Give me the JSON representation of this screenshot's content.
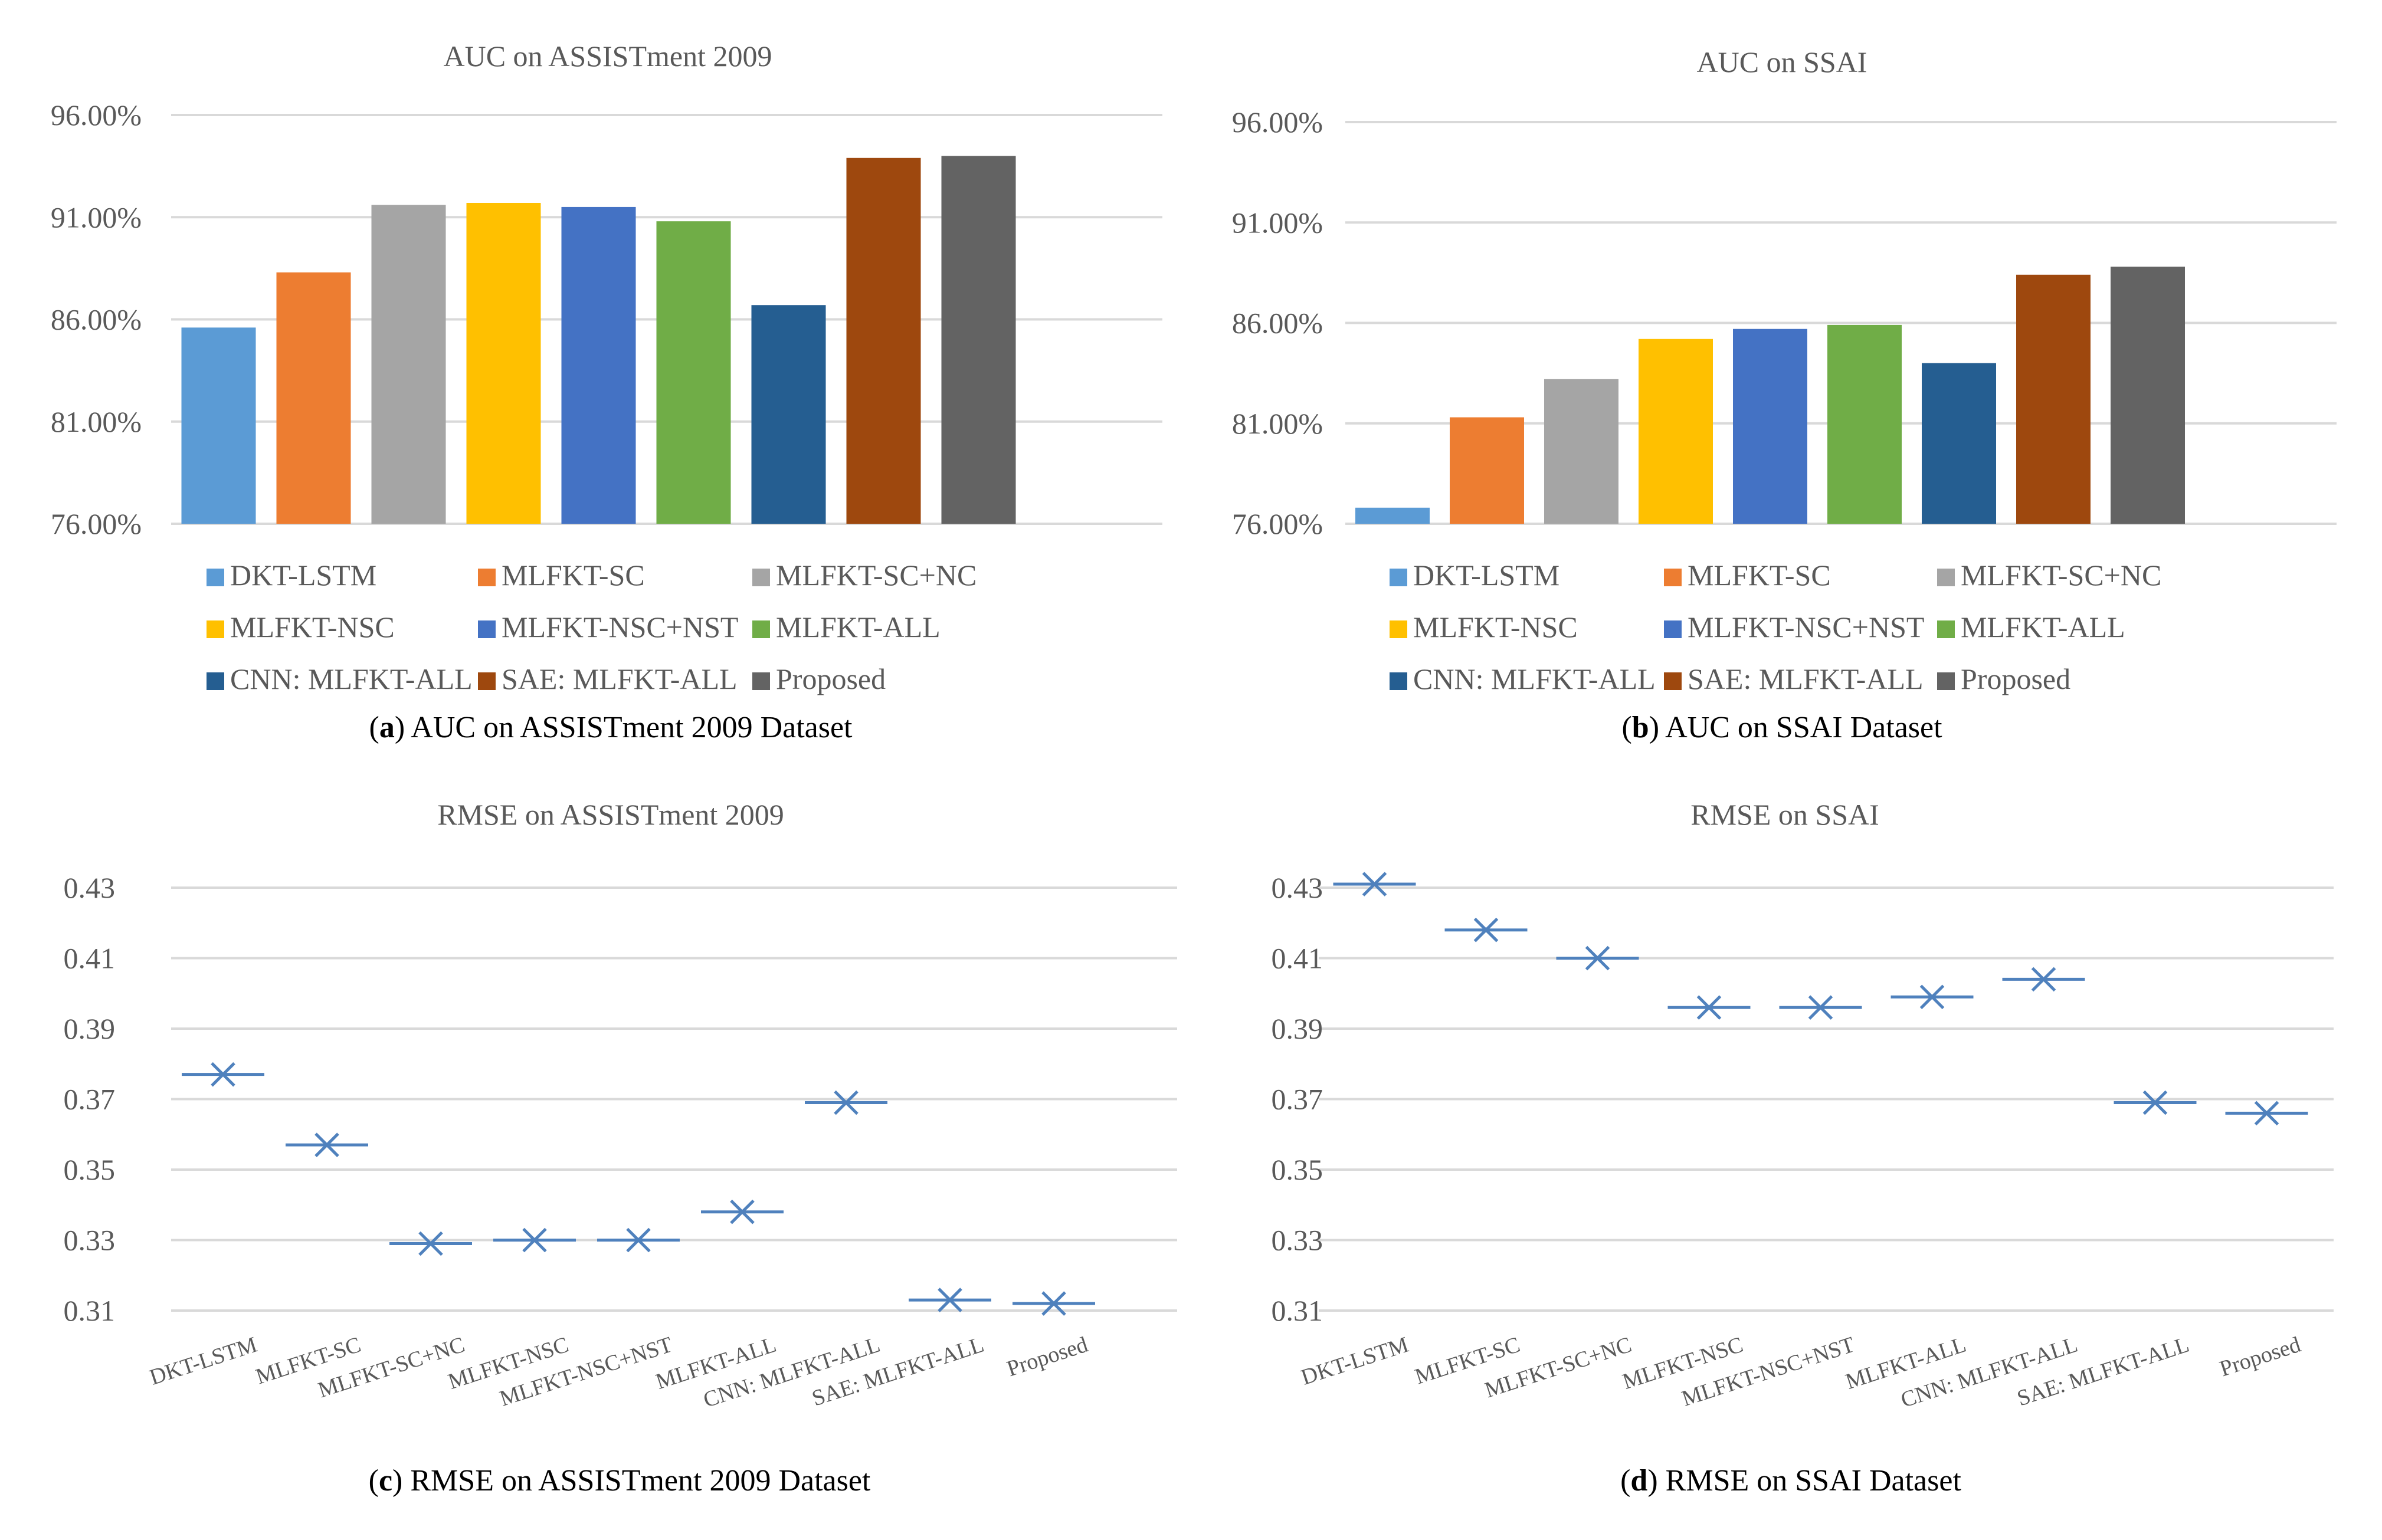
{
  "legend_items": [
    {
      "label": "DKT-LSTM",
      "color": "#5B9BD5"
    },
    {
      "label": "MLFKT-SC",
      "color": "#ED7D31"
    },
    {
      "label": "MLFKT-SC+NC",
      "color": "#A5A5A5"
    },
    {
      "label": "MLFKT-NSC",
      "color": "#FFC000"
    },
    {
      "label": "MLFKT-NSC+NST",
      "color": "#4472C4"
    },
    {
      "label": "MLFKT-ALL",
      "color": "#70AD47"
    },
    {
      "label": "CNN: MLFKT-ALL",
      "color": "#255E91"
    },
    {
      "label": "SAE: MLFKT-ALL",
      "color": "#9E480E"
    },
    {
      "label": "Proposed",
      "color": "#636363"
    }
  ],
  "chart_data": [
    {
      "id": "a",
      "type": "bar",
      "title": "AUC on ASSISTment 2009",
      "caption_letter": "a",
      "caption_text": " AUC on ASSISTment 2009 Dataset",
      "categories": [
        "DKT-LSTM",
        "MLFKT-SC",
        "MLFKT-SC+NC",
        "MLFKT-NSC",
        "MLFKT-NSC+NST",
        "MLFKT-ALL",
        "CNN: MLFKT-ALL",
        "SAE: MLFKT-ALL",
        "Proposed"
      ],
      "values": [
        85.6,
        88.3,
        91.6,
        91.7,
        91.5,
        90.8,
        86.7,
        93.9,
        94.0
      ],
      "ylim": [
        76,
        96
      ],
      "yticks": [
        76,
        81,
        86,
        91,
        96
      ],
      "ytick_labels": [
        "76.00%",
        "81.00%",
        "86.00%",
        "91.00%",
        "96.00%"
      ],
      "grid": true,
      "legend": "bottom"
    },
    {
      "id": "b",
      "type": "bar",
      "title": "AUC on SSAI",
      "caption_letter": "b",
      "caption_text": " AUC on SSAI Dataset",
      "categories": [
        "DKT-LSTM",
        "MLFKT-SC",
        "MLFKT-SC+NC",
        "MLFKT-NSC",
        "MLFKT-NSC+NST",
        "MLFKT-ALL",
        "CNN: MLFKT-ALL",
        "SAE: MLFKT-ALL",
        "Proposed"
      ],
      "values": [
        76.8,
        81.3,
        83.2,
        85.2,
        85.7,
        85.9,
        84.0,
        88.4,
        88.8
      ],
      "ylim": [
        76,
        96
      ],
      "yticks": [
        76,
        81,
        86,
        91,
        96
      ],
      "ytick_labels": [
        "76.00%",
        "81.00%",
        "86.00%",
        "91.00%",
        "96.00%"
      ],
      "grid": true,
      "legend": "bottom"
    },
    {
      "id": "c",
      "type": "scatter",
      "title": "RMSE on ASSISTment 2009",
      "caption_letter": "c",
      "caption_text": " RMSE on ASSISTment 2009 Dataset",
      "categories": [
        "DKT-LSTM",
        "MLFKT-SC",
        "MLFKT-SC+NC",
        "MLFKT-NSC",
        "MLFKT-NSC+NST",
        "MLFKT-ALL",
        "CNN: MLFKT-ALL",
        "SAE: MLFKT-ALL",
        "Proposed"
      ],
      "values": [
        0.377,
        0.357,
        0.329,
        0.33,
        0.33,
        0.338,
        0.369,
        0.313,
        0.312
      ],
      "ylim": [
        0.31,
        0.43
      ],
      "yticks": [
        0.31,
        0.33,
        0.35,
        0.37,
        0.39,
        0.41,
        0.43
      ],
      "ytick_labels": [
        "0.31",
        "0.33",
        "0.35",
        "0.37",
        "0.39",
        "0.41",
        "0.43"
      ],
      "grid": true,
      "marker_color": "#4F81BD"
    },
    {
      "id": "d",
      "type": "scatter",
      "title": "RMSE on SSAI",
      "caption_letter": "d",
      "caption_text": " RMSE on SSAI Dataset",
      "categories": [
        "DKT-LSTM",
        "MLFKT-SC",
        "MLFKT-SC+NC",
        "MLFKT-NSC",
        "MLFKT-NSC+NST",
        "MLFKT-ALL",
        "CNN: MLFKT-ALL",
        "SAE: MLFKT-ALL",
        "Proposed"
      ],
      "values": [
        0.431,
        0.418,
        0.41,
        0.396,
        0.396,
        0.399,
        0.404,
        0.369,
        0.366
      ],
      "ylim": [
        0.31,
        0.43
      ],
      "yticks": [
        0.31,
        0.33,
        0.35,
        0.37,
        0.39,
        0.41,
        0.43
      ],
      "ytick_labels": [
        "0.31",
        "0.33",
        "0.35",
        "0.37",
        "0.39",
        "0.41",
        "0.43"
      ],
      "grid": true,
      "marker_color": "#4F81BD"
    }
  ]
}
